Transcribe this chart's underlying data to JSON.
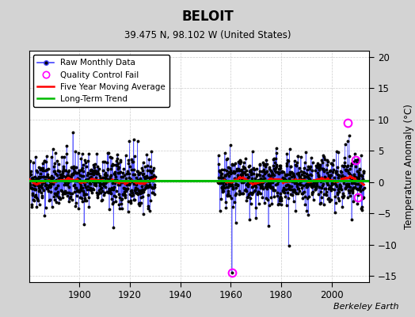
{
  "title": "BELOIT",
  "subtitle": "39.475 N, 98.102 W (United States)",
  "ylabel": "Temperature Anomaly (°C)",
  "credit": "Berkeley Earth",
  "xlim": [
    1880,
    2015
  ],
  "ylim": [
    -16,
    21
  ],
  "yticks": [
    -15,
    -10,
    -5,
    0,
    5,
    10,
    15,
    20
  ],
  "xticks": [
    1900,
    1920,
    1940,
    1960,
    1980,
    2000
  ],
  "bg_color": "#d3d3d3",
  "plot_bg_color": "#ffffff",
  "raw_line_color": "#4444ff",
  "raw_marker_color": "#000000",
  "ma_color": "#ff0000",
  "trend_color": "#00bb00",
  "qc_color": "#ff00ff",
  "data_seed": 42,
  "period1": {
    "start": 1880,
    "end": 1930,
    "mean": 0.1,
    "std": 2.1
  },
  "period2": {
    "start": 1955,
    "end": 2013,
    "mean": 0.2,
    "std": 2.0
  },
  "qc_fails": [
    {
      "year": 1960.5,
      "value": -14.5
    },
    {
      "year": 2006.5,
      "value": 9.5
    },
    {
      "year": 2009.5,
      "value": 3.5
    },
    {
      "year": 2010.5,
      "value": -2.5
    }
  ],
  "trend_y": 0.25,
  "extremes1": [
    {
      "year": 1913.5,
      "value": -7.2
    },
    {
      "year": 1921.5,
      "value": 6.8
    },
    {
      "year": 1923.0,
      "value": 6.5
    },
    {
      "year": 1895.0,
      "value": 4.5
    },
    {
      "year": 1887.0,
      "value": 4.2
    }
  ],
  "extremes2": [
    {
      "year": 1975.0,
      "value": -7.0
    },
    {
      "year": 1983.0,
      "value": -10.2
    },
    {
      "year": 1960.5,
      "value": -14.5
    },
    {
      "year": 1962.0,
      "value": -6.5
    },
    {
      "year": 2007.0,
      "value": 7.5
    },
    {
      "year": 2008.0,
      "value": -6.0
    }
  ]
}
